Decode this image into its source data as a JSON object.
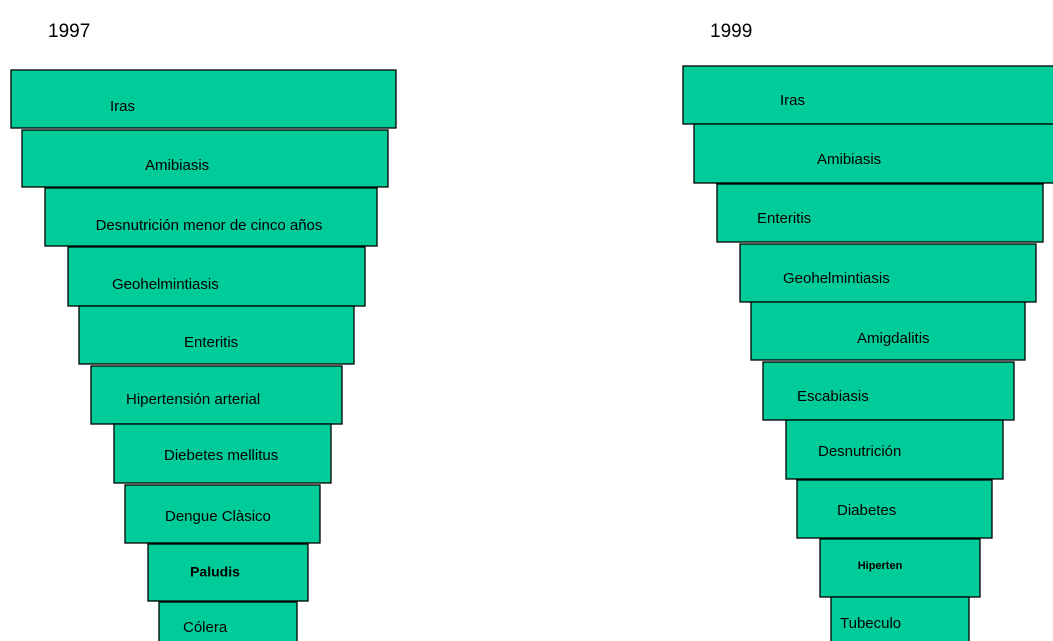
{
  "pyramids": [
    {
      "title": "1997",
      "levels": [
        "Iras",
        "Amibiasis",
        "Desnutrición menor de cinco años",
        "Geohelmintiasis",
        "Enteritis",
        "Hipertensión arterial",
        "Diebetes mellitus",
        "Dengue Clàsico",
        "Paludis",
        "Cólera"
      ]
    },
    {
      "title": "1999",
      "levels": [
        "Iras",
        "Amibiasis",
        "Enteritis",
        "Geohelmintiasis",
        "Amigdalitis",
        "Escabiasis",
        "Desnutrición",
        "Diabetes",
        "Hiperten",
        "Tubeculo"
      ]
    }
  ]
}
